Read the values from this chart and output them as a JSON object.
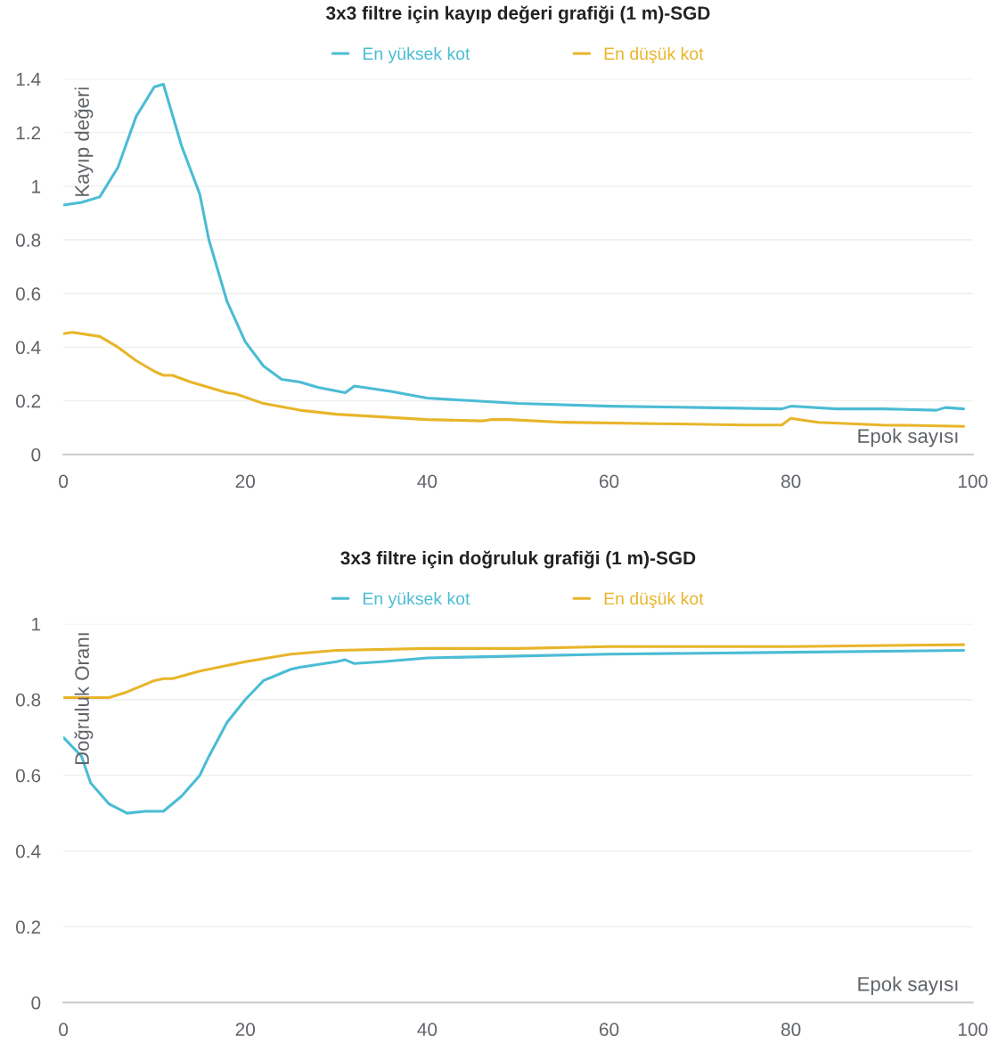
{
  "chart_data": [
    {
      "type": "line",
      "title": "3x3 filtre için kayıp değeri grafiği (1 m)-SGD",
      "xlabel": "Epok sayısı",
      "ylabel": "Kayıp değeri",
      "xlim": [
        0,
        100
      ],
      "xticks": [
        0,
        20,
        40,
        60,
        80,
        100
      ],
      "ylim": [
        0,
        1.4
      ],
      "yticks": [
        0,
        0.2,
        0.4,
        0.6,
        0.8,
        1,
        1.2,
        1.4
      ],
      "grid": "y",
      "legend": "top",
      "marker": "none",
      "line_style": "solid",
      "series": [
        {
          "name": "En yüksek kot",
          "color": "#4bbcd4",
          "x": [
            0,
            2,
            4,
            6,
            8,
            10,
            11,
            13,
            15,
            16,
            18,
            20,
            22,
            24,
            26,
            28,
            31,
            32,
            34,
            36,
            40,
            45,
            50,
            60,
            70,
            79,
            80,
            85,
            90,
            96,
            97,
            99
          ],
          "values": [
            0.93,
            0.94,
            0.96,
            1.07,
            1.26,
            1.37,
            1.38,
            1.15,
            0.97,
            0.8,
            0.57,
            0.42,
            0.33,
            0.28,
            0.27,
            0.25,
            0.23,
            0.255,
            0.245,
            0.235,
            0.21,
            0.2,
            0.19,
            0.18,
            0.175,
            0.17,
            0.18,
            0.17,
            0.17,
            0.165,
            0.175,
            0.17
          ]
        },
        {
          "name": "En düşük kot",
          "color": "#e8b52a",
          "x": [
            0,
            1,
            4,
            6,
            8,
            10,
            11,
            12,
            14,
            18,
            19,
            22,
            26,
            30,
            40,
            46,
            47,
            49,
            55,
            65,
            75,
            79,
            80,
            83,
            90,
            99
          ],
          "values": [
            0.45,
            0.455,
            0.44,
            0.4,
            0.35,
            0.31,
            0.295,
            0.295,
            0.27,
            0.23,
            0.225,
            0.19,
            0.165,
            0.15,
            0.13,
            0.125,
            0.13,
            0.13,
            0.12,
            0.115,
            0.11,
            0.11,
            0.135,
            0.12,
            0.11,
            0.105
          ]
        }
      ]
    },
    {
      "type": "line",
      "title": "3x3 filtre için doğruluk grafiği (1 m)-SGD",
      "xlabel": "Epok sayısı",
      "ylabel": "Doğruluk Oranı",
      "xlim": [
        0,
        100
      ],
      "xticks": [
        0,
        20,
        40,
        60,
        80,
        100
      ],
      "ylim": [
        0,
        1
      ],
      "yticks": [
        0,
        0.2,
        0.4,
        0.6,
        0.8,
        1
      ],
      "grid": "y",
      "legend": "top",
      "marker": "none",
      "line_style": "solid",
      "series": [
        {
          "name": "En yüksek kot",
          "color": "#4bbcd4",
          "x": [
            0,
            2,
            3,
            5,
            7,
            9,
            11,
            13,
            15,
            16,
            18,
            20,
            22,
            25,
            26,
            30,
            31,
            32,
            35,
            40,
            50,
            60,
            80,
            99
          ],
          "values": [
            0.7,
            0.65,
            0.58,
            0.525,
            0.5,
            0.505,
            0.505,
            0.545,
            0.6,
            0.65,
            0.74,
            0.8,
            0.85,
            0.88,
            0.885,
            0.9,
            0.905,
            0.895,
            0.9,
            0.91,
            0.915,
            0.92,
            0.925,
            0.93
          ]
        },
        {
          "name": "En düşük kot",
          "color": "#e8b52a",
          "x": [
            0,
            5,
            7,
            10,
            11,
            12,
            15,
            20,
            25,
            30,
            40,
            50,
            60,
            80,
            99
          ],
          "values": [
            0.805,
            0.805,
            0.82,
            0.85,
            0.855,
            0.855,
            0.875,
            0.9,
            0.92,
            0.93,
            0.935,
            0.935,
            0.94,
            0.94,
            0.945
          ]
        }
      ]
    }
  ]
}
